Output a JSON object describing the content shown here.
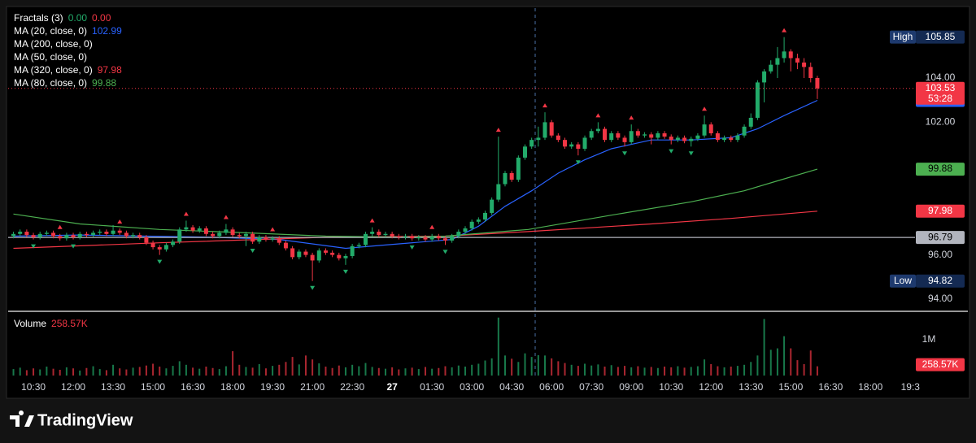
{
  "chart_data": {
    "type": "candlestick",
    "up_color": "#22ab6a",
    "down_color": "#f23645",
    "xlim": [
      -0.8,
      135.7
    ],
    "ylim": [
      93.45,
      107.16
    ],
    "xticks": [
      {
        "value": 3,
        "label": "10:30"
      },
      {
        "value": 9,
        "label": "12:00"
      },
      {
        "value": 15,
        "label": "13:30"
      },
      {
        "value": 21,
        "label": "15:00"
      },
      {
        "value": 27,
        "label": "16:30"
      },
      {
        "value": 33,
        "label": "18:00"
      },
      {
        "value": 39,
        "label": "19:30"
      },
      {
        "value": 45,
        "label": "21:00"
      },
      {
        "value": 51,
        "label": "22:30"
      },
      {
        "value": 57,
        "label": "27"
      },
      {
        "value": 63,
        "label": "01:30"
      },
      {
        "value": 69,
        "label": "03:00"
      },
      {
        "value": 75,
        "label": "04:30"
      },
      {
        "value": 81,
        "label": "06:00"
      },
      {
        "value": 87,
        "label": "07:30"
      },
      {
        "value": 93,
        "label": "09:00"
      },
      {
        "value": 99,
        "label": "10:30"
      },
      {
        "value": 105,
        "label": "12:00"
      },
      {
        "value": 111,
        "label": "13:30"
      },
      {
        "value": 117,
        "label": "15:00"
      },
      {
        "value": 123,
        "label": "16:30"
      },
      {
        "value": 129,
        "label": "18:00"
      },
      {
        "value": 135,
        "label": "19:3"
      }
    ],
    "yticks": [
      {
        "value": 94,
        "label": "94.00"
      },
      {
        "value": 96,
        "label": "96.00"
      },
      {
        "value": 102,
        "label": "102.00"
      },
      {
        "value": 104,
        "label": "104.00"
      }
    ],
    "ohlc": [
      [
        96.85,
        97.05,
        96.75,
        96.95
      ],
      [
        96.95,
        97.15,
        96.85,
        97.05
      ],
      [
        97.05,
        97.15,
        96.8,
        96.9
      ],
      [
        96.9,
        97.0,
        96.7,
        96.8
      ],
      [
        96.8,
        97.05,
        96.7,
        96.95
      ],
      [
        96.95,
        97.1,
        96.85,
        97.0
      ],
      [
        97.0,
        97.1,
        96.75,
        96.85
      ],
      [
        96.85,
        96.95,
        96.65,
        96.75
      ],
      [
        96.75,
        97.0,
        96.65,
        96.9
      ],
      [
        96.9,
        97.0,
        96.7,
        96.8
      ],
      [
        96.8,
        97.05,
        96.7,
        96.95
      ],
      [
        96.95,
        97.05,
        96.8,
        96.9
      ],
      [
        96.9,
        97.1,
        96.8,
        97.0
      ],
      [
        97.0,
        97.15,
        96.9,
        97.05
      ],
      [
        97.05,
        97.15,
        96.85,
        96.95
      ],
      [
        96.95,
        97.35,
        96.85,
        97.1
      ],
      [
        97.1,
        97.2,
        96.9,
        97.0
      ],
      [
        97.0,
        97.1,
        96.75,
        96.85
      ],
      [
        96.85,
        97.0,
        96.75,
        96.9
      ],
      [
        96.9,
        97.0,
        96.7,
        96.8
      ],
      [
        96.8,
        96.9,
        96.45,
        96.55
      ],
      [
        96.55,
        96.65,
        96.25,
        96.35
      ],
      [
        96.35,
        96.45,
        96.0,
        96.25
      ],
      [
        96.25,
        96.55,
        96.15,
        96.45
      ],
      [
        96.45,
        96.7,
        96.35,
        96.6
      ],
      [
        96.6,
        97.25,
        96.5,
        97.15
      ],
      [
        97.15,
        97.55,
        97.05,
        97.25
      ],
      [
        97.25,
        97.35,
        97.0,
        97.1
      ],
      [
        97.1,
        97.3,
        97.0,
        97.2
      ],
      [
        97.2,
        97.3,
        96.85,
        96.95
      ],
      [
        96.95,
        97.05,
        96.75,
        96.85
      ],
      [
        96.85,
        97.1,
        96.75,
        97.0
      ],
      [
        97.0,
        97.4,
        96.9,
        97.15
      ],
      [
        97.15,
        97.25,
        96.8,
        96.9
      ],
      [
        96.9,
        97.0,
        96.75,
        96.85
      ],
      [
        96.85,
        97.05,
        96.4,
        96.95
      ],
      [
        96.95,
        97.05,
        96.5,
        96.6
      ],
      [
        96.6,
        96.9,
        96.5,
        96.8
      ],
      [
        96.8,
        96.9,
        96.6,
        96.7
      ],
      [
        96.7,
        96.85,
        96.6,
        96.75
      ],
      [
        96.75,
        96.85,
        96.45,
        96.55
      ],
      [
        96.55,
        96.65,
        96.2,
        96.3
      ],
      [
        96.3,
        96.4,
        95.8,
        95.9
      ],
      [
        95.9,
        96.25,
        95.8,
        96.15
      ],
      [
        96.15,
        96.25,
        95.9,
        96.0
      ],
      [
        96.0,
        96.1,
        94.82,
        95.75
      ],
      [
        95.75,
        96.3,
        95.65,
        96.2
      ],
      [
        96.2,
        96.3,
        96.0,
        96.1
      ],
      [
        96.1,
        96.2,
        95.9,
        96.0
      ],
      [
        96.0,
        96.1,
        95.75,
        95.85
      ],
      [
        95.85,
        96.05,
        95.55,
        95.95
      ],
      [
        95.95,
        96.5,
        95.85,
        96.4
      ],
      [
        96.4,
        96.55,
        96.3,
        96.45
      ],
      [
        96.45,
        97.05,
        96.35,
        96.95
      ],
      [
        96.95,
        97.25,
        96.85,
        97.05
      ],
      [
        97.05,
        97.15,
        96.8,
        96.9
      ],
      [
        96.9,
        97.05,
        96.8,
        96.95
      ],
      [
        96.95,
        97.05,
        96.75,
        96.85
      ],
      [
        96.85,
        96.95,
        96.7,
        96.8
      ],
      [
        96.8,
        96.95,
        96.7,
        96.85
      ],
      [
        96.85,
        96.95,
        96.65,
        96.75
      ],
      [
        96.75,
        96.9,
        96.65,
        96.8
      ],
      [
        96.8,
        96.9,
        96.6,
        96.7
      ],
      [
        96.7,
        96.95,
        96.6,
        96.85
      ],
      [
        96.85,
        96.95,
        96.65,
        96.75
      ],
      [
        96.75,
        96.85,
        96.45,
        96.65
      ],
      [
        96.65,
        96.95,
        96.55,
        96.85
      ],
      [
        96.85,
        97.15,
        96.75,
        97.05
      ],
      [
        97.05,
        97.3,
        96.95,
        97.2
      ],
      [
        97.2,
        97.6,
        97.1,
        97.5
      ],
      [
        97.5,
        97.7,
        97.4,
        97.6
      ],
      [
        97.6,
        98.0,
        97.5,
        97.9
      ],
      [
        97.9,
        98.6,
        97.8,
        98.5
      ],
      [
        98.5,
        101.35,
        98.4,
        99.2
      ],
      [
        99.2,
        99.8,
        99.1,
        99.7
      ],
      [
        99.7,
        99.8,
        99.3,
        99.4
      ],
      [
        99.4,
        100.5,
        99.3,
        100.4
      ],
      [
        100.4,
        101.0,
        100.3,
        100.9
      ],
      [
        100.9,
        101.3,
        100.8,
        101.2
      ],
      [
        101.2,
        101.8,
        100.9,
        101.3
      ],
      [
        101.3,
        102.45,
        101.2,
        102.0
      ],
      [
        102.0,
        102.1,
        101.3,
        101.4
      ],
      [
        101.4,
        101.5,
        101.1,
        101.2
      ],
      [
        101.2,
        101.3,
        100.8,
        100.9
      ],
      [
        100.9,
        101.1,
        100.8,
        101.0
      ],
      [
        101.0,
        101.1,
        100.5,
        100.8
      ],
      [
        100.8,
        101.4,
        100.7,
        101.3
      ],
      [
        101.3,
        101.7,
        101.2,
        101.6
      ],
      [
        101.6,
        102.0,
        101.5,
        101.7
      ],
      [
        101.7,
        101.8,
        101.1,
        101.2
      ],
      [
        101.2,
        101.6,
        101.1,
        101.5
      ],
      [
        101.5,
        101.6,
        101.2,
        101.3
      ],
      [
        101.3,
        101.4,
        100.9,
        101.1
      ],
      [
        101.1,
        101.9,
        101.0,
        101.6
      ],
      [
        101.6,
        101.7,
        101.3,
        101.4
      ],
      [
        101.4,
        101.55,
        101.3,
        101.45
      ],
      [
        101.45,
        101.55,
        101.0,
        101.3
      ],
      [
        101.3,
        101.6,
        101.2,
        101.5
      ],
      [
        101.5,
        101.6,
        101.25,
        101.35
      ],
      [
        101.35,
        101.45,
        101.0,
        101.2
      ],
      [
        101.2,
        101.4,
        101.1,
        101.3
      ],
      [
        101.3,
        101.4,
        101.05,
        101.15
      ],
      [
        101.15,
        101.35,
        100.9,
        101.25
      ],
      [
        101.25,
        101.5,
        101.15,
        101.4
      ],
      [
        101.4,
        102.3,
        101.3,
        101.9
      ],
      [
        101.9,
        102.0,
        101.4,
        101.5
      ],
      [
        101.5,
        101.6,
        101.1,
        101.2
      ],
      [
        101.2,
        101.4,
        101.1,
        101.3
      ],
      [
        101.3,
        101.4,
        101.1,
        101.2
      ],
      [
        101.2,
        101.5,
        101.1,
        101.4
      ],
      [
        101.4,
        101.9,
        101.3,
        101.8
      ],
      [
        101.8,
        102.4,
        101.7,
        102.2
      ],
      [
        102.2,
        103.9,
        102.1,
        103.8
      ],
      [
        103.8,
        104.4,
        102.9,
        104.3
      ],
      [
        104.3,
        104.8,
        104.2,
        104.6
      ],
      [
        104.6,
        105.4,
        104.0,
        104.9
      ],
      [
        104.9,
        105.85,
        104.7,
        105.2
      ],
      [
        105.2,
        105.3,
        104.3,
        104.9
      ],
      [
        104.9,
        105.1,
        104.4,
        104.7
      ],
      [
        104.7,
        104.9,
        104.0,
        104.5
      ],
      [
        104.5,
        104.7,
        103.8,
        104.0
      ],
      [
        104.0,
        104.1,
        103.05,
        103.53
      ]
    ],
    "countdown": "53:28",
    "high_label": "High",
    "low_label": "Low",
    "price_line": 96.79,
    "fractals_up": [
      7,
      16,
      26,
      32,
      39,
      54,
      63,
      73,
      80,
      88,
      93,
      104,
      116
    ],
    "fractals_down": [
      3,
      9,
      22,
      36,
      45,
      50,
      60,
      65,
      85,
      92,
      99,
      102
    ],
    "indicators": [
      {
        "name": "Fractals (3)",
        "values": [
          0,
          0
        ],
        "value_labels": [
          "0.00",
          "0.00"
        ],
        "colors": [
          "#22ab6a",
          "#f23645"
        ]
      },
      {
        "name": "MA (20, close, 0)",
        "value": 102.99,
        "color": "#2962ff",
        "x": [
          0,
          10,
          20,
          30,
          40,
          50,
          56,
          62,
          66,
          70,
          74,
          78,
          82,
          86,
          90,
          96,
          102,
          108,
          112,
          116,
          121
        ],
        "y": [
          96.85,
          96.9,
          96.85,
          96.8,
          96.7,
          96.3,
          96.45,
          96.6,
          96.7,
          97.3,
          98.2,
          98.9,
          99.7,
          100.3,
          100.8,
          101.2,
          101.2,
          101.3,
          101.7,
          102.3,
          102.99
        ]
      },
      {
        "name": "MA (200, close, 0)"
      },
      {
        "name": "MA (50, close, 0)"
      },
      {
        "name": "MA (320, close, 0)",
        "value": 97.98,
        "color": "#f23645",
        "x": [
          0,
          22,
          47,
          65,
          77,
          96,
          108,
          121
        ],
        "y": [
          96.3,
          96.55,
          96.8,
          96.85,
          97.05,
          97.4,
          97.65,
          97.98
        ]
      },
      {
        "name": "MA (80, close, 0)",
        "value": 99.88,
        "color": "#4caf50",
        "x": [
          0,
          10,
          22,
          35,
          47,
          59,
          65,
          77.5,
          90,
          102,
          110,
          115,
          121
        ],
        "y": [
          97.85,
          97.4,
          97.15,
          97.0,
          96.85,
          96.8,
          96.85,
          97.15,
          97.8,
          98.4,
          98.9,
          99.35,
          99.88
        ]
      }
    ],
    "volume": {
      "name": "Volume",
      "last_value_label": "258.57K",
      "ylim": [
        0,
        1795000
      ],
      "yticks": [
        {
          "value": 1000000,
          "label": "1M"
        }
      ],
      "values": [
        180000,
        220000,
        150000,
        200000,
        170000,
        250000,
        190000,
        160000,
        230000,
        200000,
        140000,
        210000,
        260000,
        180000,
        150000,
        300000,
        200000,
        170000,
        220000,
        240000,
        280000,
        330000,
        250000,
        200000,
        270000,
        400000,
        300000,
        220000,
        190000,
        250000,
        210000,
        180000,
        260000,
        680000,
        300000,
        240000,
        220000,
        320000,
        200000,
        270000,
        300000,
        380000,
        520000,
        310000,
        560000,
        450000,
        340000,
        250000,
        210000,
        280000,
        230000,
        300000,
        260000,
        350000,
        240000,
        210000,
        190000,
        230000,
        170000,
        200000,
        220000,
        180000,
        240000,
        190000,
        210000,
        260000,
        230000,
        280000,
        250000,
        300000,
        330000,
        420000,
        480000,
        1620000,
        560000,
        470000,
        380000,
        620000,
        520000,
        570000,
        560000,
        480000,
        400000,
        350000,
        300000,
        270000,
        330000,
        280000,
        310000,
        250000,
        290000,
        240000,
        270000,
        230000,
        260000,
        220000,
        240000,
        210000,
        250000,
        230000,
        260000,
        220000,
        240000,
        260000,
        450000,
        320000,
        260000,
        230000,
        250000,
        270000,
        300000,
        380000,
        560000,
        1580000,
        720000,
        760000,
        1100000,
        760000,
        430000,
        320000,
        700000,
        258570
      ]
    }
  },
  "brand": "TradingView"
}
